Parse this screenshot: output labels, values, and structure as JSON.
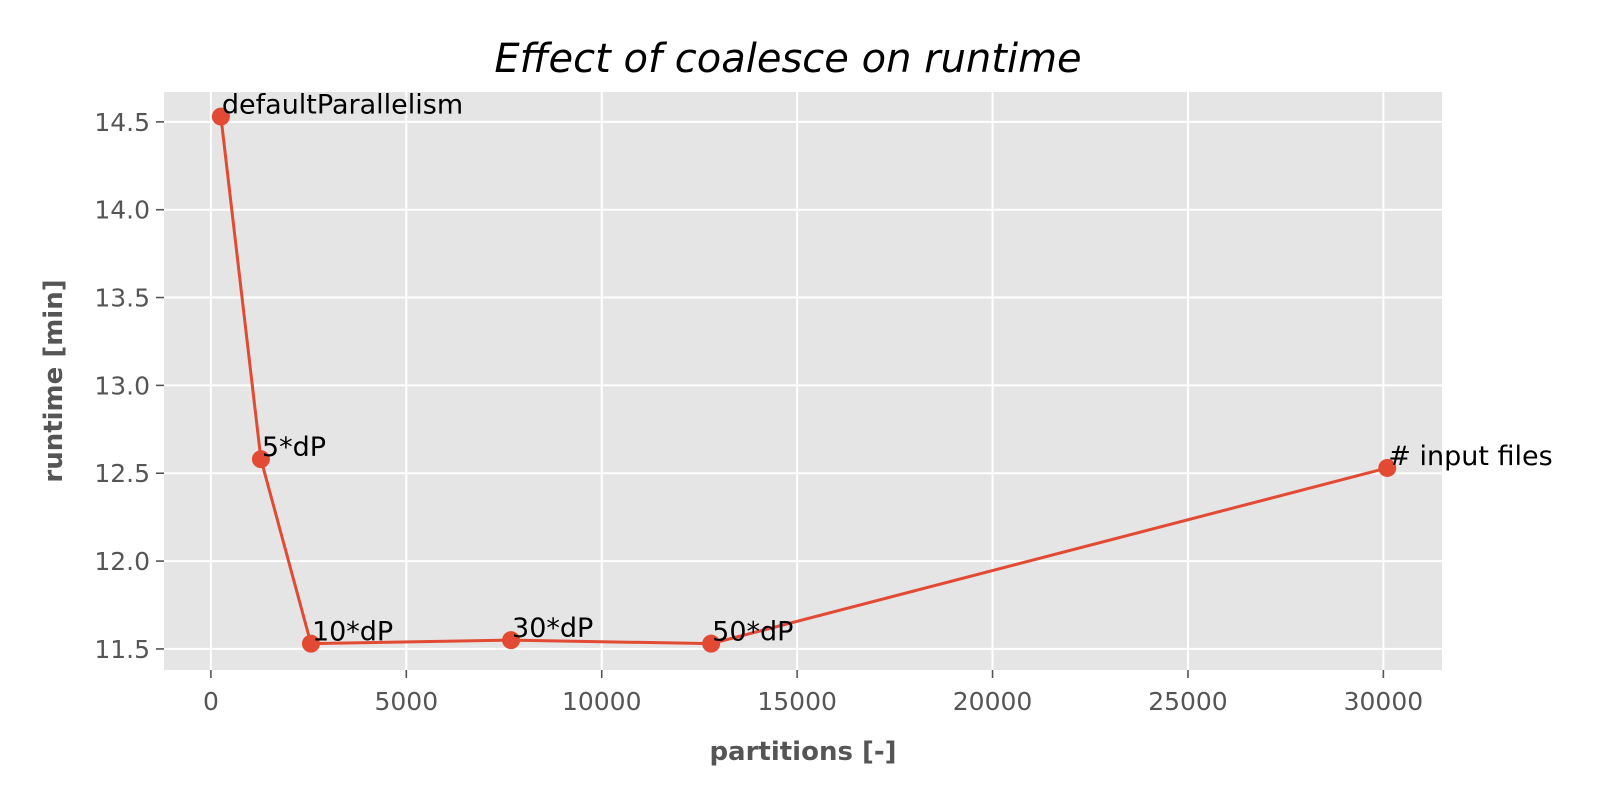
{
  "chart_data": {
    "type": "line",
    "title": "Effect of coalesce on runtime",
    "xlabel": "partitions [-]",
    "ylabel": "runtime [min]",
    "xlim": [
      -1200,
      31500
    ],
    "ylim": [
      11.38,
      14.67
    ],
    "xticks": [
      0,
      5000,
      10000,
      15000,
      20000,
      25000,
      30000
    ],
    "xtick_labels": [
      "0",
      "5000",
      "10000",
      "15000",
      "20000",
      "25000",
      "30000"
    ],
    "yticks": [
      11.5,
      12.0,
      12.5,
      13.0,
      13.5,
      14.0,
      14.5
    ],
    "ytick_labels": [
      "11.5",
      "12.0",
      "12.5",
      "13.0",
      "13.5",
      "14.0",
      "14.5"
    ],
    "grid": true,
    "series": [
      {
        "color": "#E24A33",
        "x": [
          256,
          1280,
          2560,
          7680,
          12800,
          30100
        ],
        "y": [
          14.53,
          12.58,
          11.53,
          11.55,
          11.53,
          12.53
        ],
        "labels": [
          "defaultParallelism",
          "5*dP",
          "10*dP",
          "30*dP",
          "50*dP",
          "# input files"
        ]
      }
    ]
  },
  "colors": {
    "plot_background": "#E5E5E5",
    "series": "#E24A33"
  }
}
